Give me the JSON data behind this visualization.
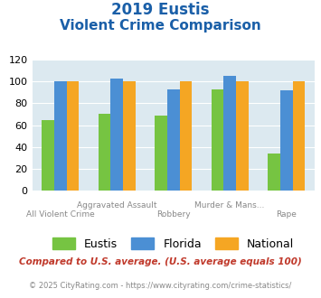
{
  "title_line1": "2019 Eustis",
  "title_line2": "Violent Crime Comparison",
  "categories": [
    "All Violent Crime",
    "Aggravated Assault",
    "Robbery",
    "Murder & Mans...",
    "Rape"
  ],
  "top_labels": [
    "",
    "Aggravated Assault",
    "",
    "Murder & Mans...",
    ""
  ],
  "bottom_labels": [
    "All Violent Crime",
    "",
    "Robbery",
    "",
    "Rape"
  ],
  "eustis": [
    65,
    70,
    69,
    93,
    34
  ],
  "florida": [
    100,
    103,
    93,
    105,
    92
  ],
  "national": [
    100,
    100,
    100,
    100,
    100
  ],
  "eustis_color": "#76c442",
  "florida_color": "#4b8fd4",
  "national_color": "#f5a623",
  "bg_color": "#dce9f0",
  "ylim": [
    0,
    120
  ],
  "yticks": [
    0,
    20,
    40,
    60,
    80,
    100,
    120
  ],
  "footnote1": "Compared to U.S. average. (U.S. average equals 100)",
  "footnote2": "© 2025 CityRating.com - https://www.cityrating.com/crime-statistics/",
  "title_color": "#1a5fa8",
  "footnote1_color": "#c0392b",
  "footnote2_color": "#888888",
  "bar_width": 0.22
}
